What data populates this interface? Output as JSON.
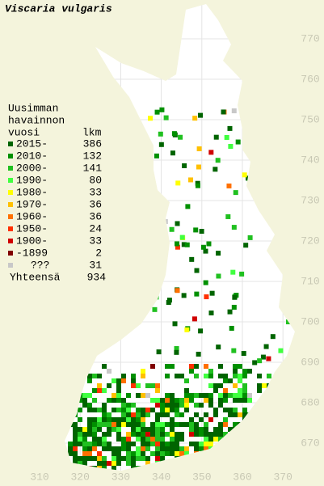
{
  "title": "Viscaria vulgaris",
  "legend": {
    "heading": [
      "Uusimman",
      "havainnon",
      "vuosi"
    ],
    "count_heading": "lkm",
    "rows": [
      {
        "label": "2015-",
        "count": 386,
        "color": "#006400"
      },
      {
        "label": "2010-",
        "count": 132,
        "color": "#009000"
      },
      {
        "label": "2000-",
        "count": 141,
        "color": "#20c020"
      },
      {
        "label": "1990-",
        "count": 80,
        "color": "#40ff40"
      },
      {
        "label": "1980-",
        "count": 33,
        "color": "#ffff00"
      },
      {
        "label": "1970-",
        "count": 36,
        "color": "#ffc000"
      },
      {
        "label": "1960-",
        "count": 36,
        "color": "#ff7000"
      },
      {
        "label": "1950-",
        "count": 24,
        "color": "#ff3000"
      },
      {
        "label": "1900-",
        "count": 33,
        "color": "#d00000"
      },
      {
        "label": "-1899",
        "count": 2,
        "color": "#800000"
      },
      {
        "label": "???",
        "count": 31,
        "color": "#c8c8c8"
      }
    ],
    "total": {
      "label": "Yhteensä",
      "count": 934
    }
  },
  "x_axis": [
    310,
    320,
    330,
    340,
    350,
    360,
    370
  ],
  "y_axis": [
    770,
    760,
    750,
    740,
    730,
    720,
    710,
    700,
    690,
    680,
    670
  ]
}
